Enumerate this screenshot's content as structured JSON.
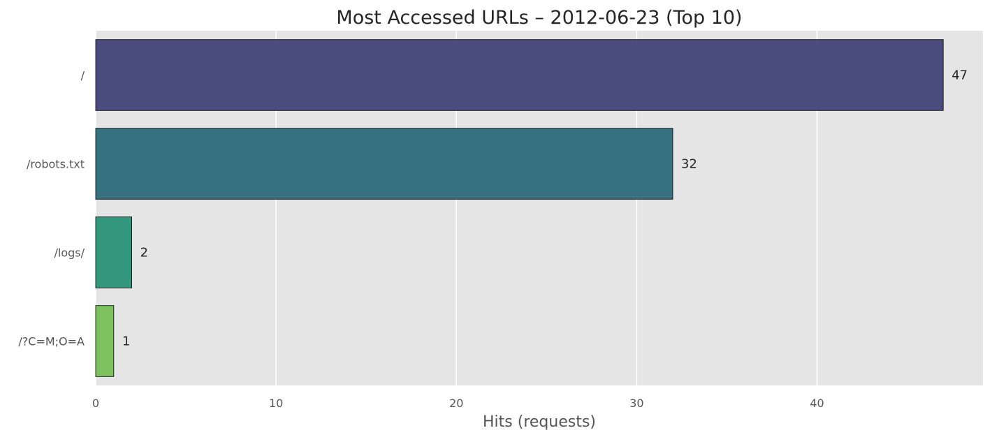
{
  "chart_data": {
    "type": "bar",
    "orientation": "horizontal",
    "title": "Most Accessed URLs – 2012-06-23 (Top 10)",
    "xlabel": "Hits (requests)",
    "ylabel": "",
    "categories": [
      "/",
      "/robots.txt",
      "/logs/",
      "/?C=M;O=A"
    ],
    "values": [
      47,
      32,
      2,
      1
    ],
    "data_labels": [
      "47",
      "32",
      "2",
      "1"
    ],
    "bar_colors": [
      "#4a4c7d",
      "#367180",
      "#33987c",
      "#7dc25f"
    ],
    "xlim": [
      0,
      49.2
    ],
    "xticks": [
      0,
      10,
      20,
      30,
      40
    ],
    "xtick_labels": [
      "0",
      "10",
      "20",
      "30",
      "40"
    ],
    "grid": true,
    "grid_axis": "x",
    "legend": "none",
    "background": "#e5e5e5",
    "gridline_color": "#ffffff"
  }
}
